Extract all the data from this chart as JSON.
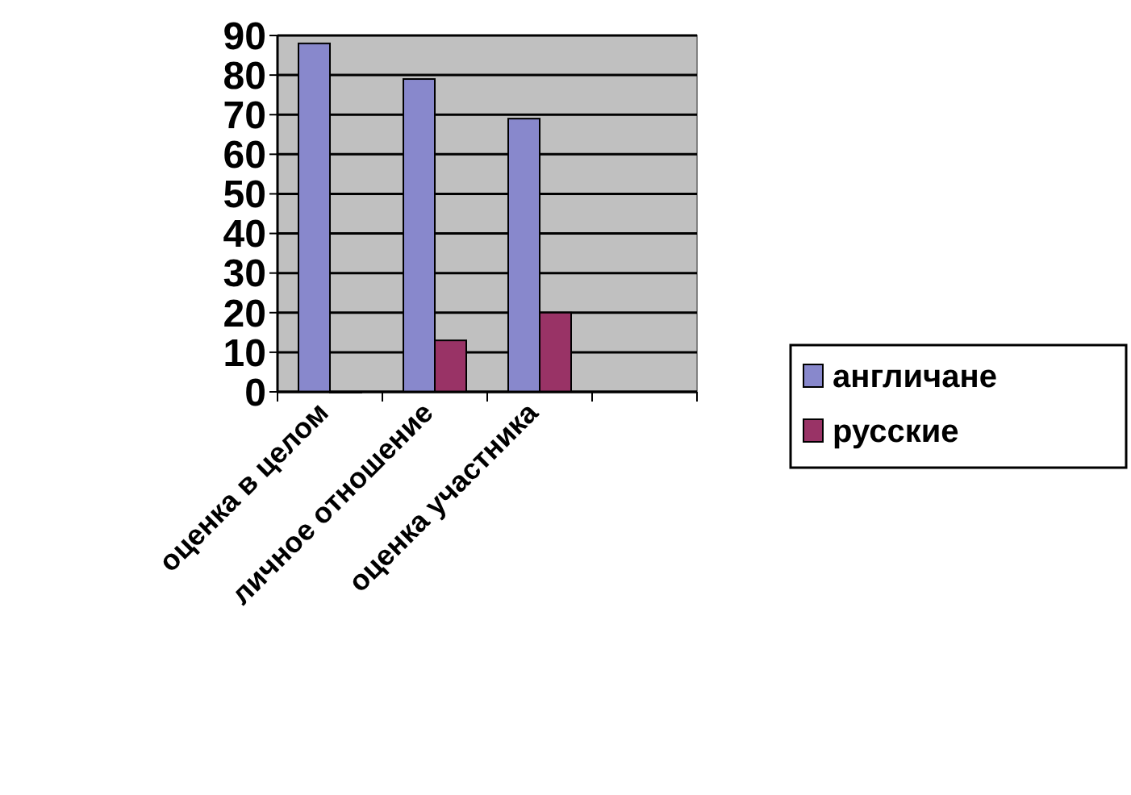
{
  "chart_data": {
    "type": "bar",
    "categories": [
      "оценка в целом",
      "личное отношение",
      "оценка участника",
      null
    ],
    "series": [
      {
        "name": "англичане",
        "color": "#8888cc",
        "values": [
          88,
          79,
          69,
          null
        ]
      },
      {
        "name": "русские",
        "color": "#993366",
        "values": [
          0,
          13,
          20,
          null
        ]
      }
    ],
    "ylim": [
      0,
      90
    ],
    "yticks": [
      0,
      10,
      20,
      30,
      40,
      50,
      60,
      70,
      80,
      90
    ],
    "grid": "y",
    "legend": "right"
  }
}
